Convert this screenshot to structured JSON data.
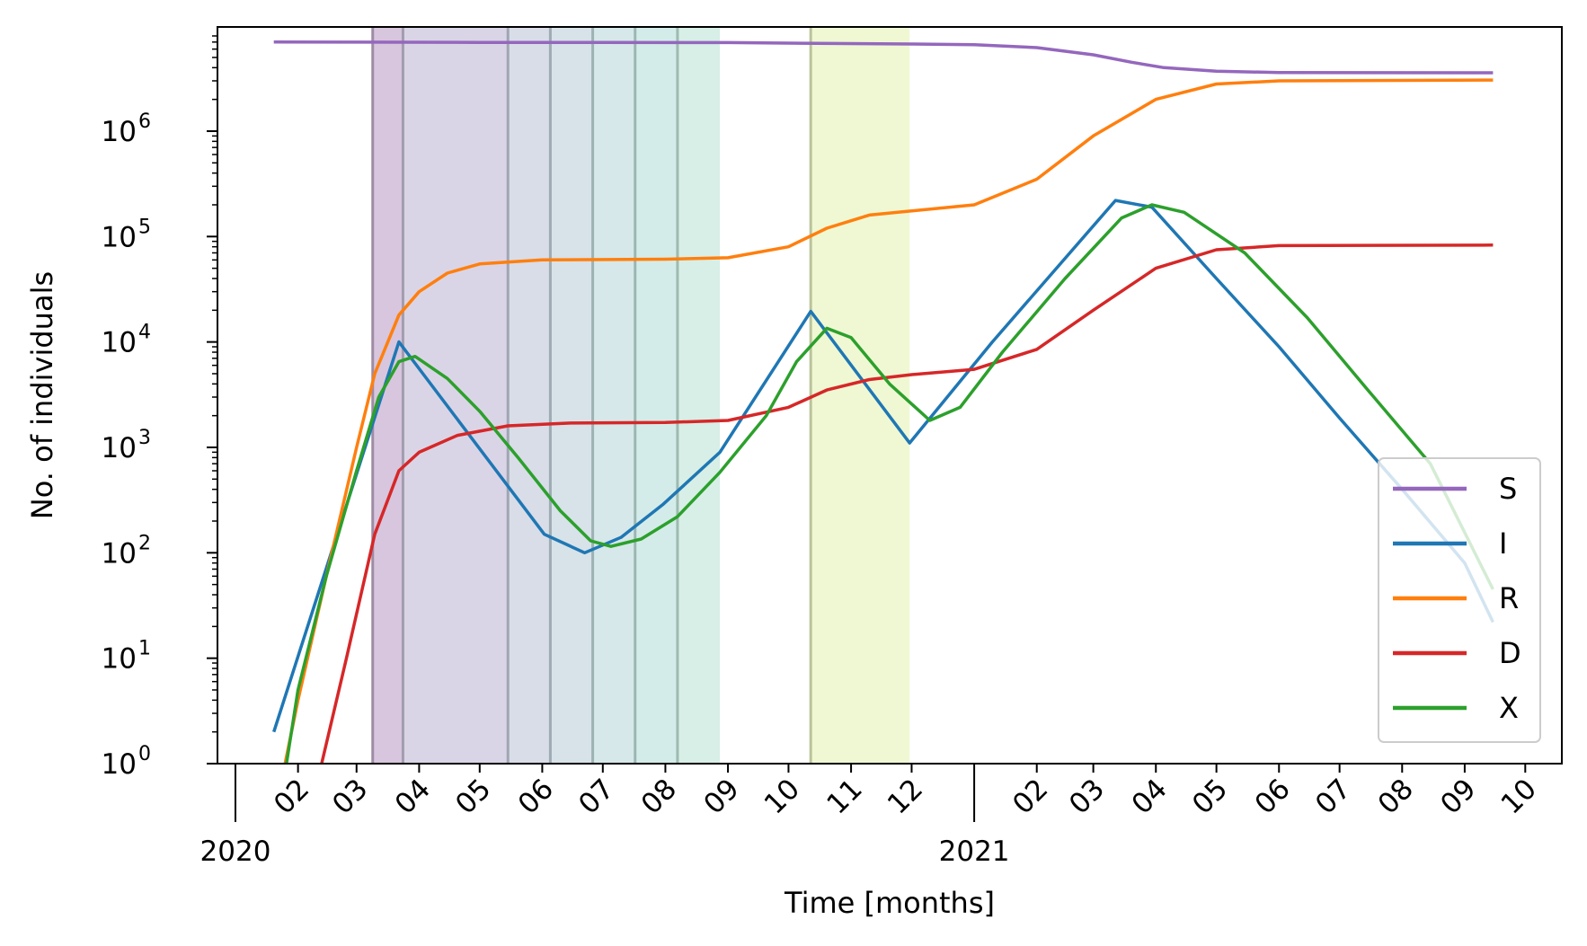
{
  "chart_data": {
    "type": "line",
    "xlabel": "Time [months]",
    "ylabel": "No. of individuals",
    "y_scale": "log",
    "ylim": [
      1,
      8000000
    ],
    "xlim": [
      "2020-01-01",
      "2021-10-12"
    ],
    "grid": false,
    "legend_position": "lower-right",
    "y_ticks": [
      {
        "value": 1,
        "base": "10",
        "exp": "0"
      },
      {
        "value": 10,
        "base": "10",
        "exp": "1"
      },
      {
        "value": 100,
        "base": "10",
        "exp": "2"
      },
      {
        "value": 1000,
        "base": "10",
        "exp": "3"
      },
      {
        "value": 10000,
        "base": "10",
        "exp": "4"
      },
      {
        "value": 100000,
        "base": "10",
        "exp": "5"
      },
      {
        "value": 1000000,
        "base": "10",
        "exp": "6"
      }
    ],
    "x_month_ticks": [
      {
        "date": "2020-02-01",
        "label": "02"
      },
      {
        "date": "2020-03-01",
        "label": "03"
      },
      {
        "date": "2020-04-01",
        "label": "04"
      },
      {
        "date": "2020-05-01",
        "label": "05"
      },
      {
        "date": "2020-06-01",
        "label": "06"
      },
      {
        "date": "2020-07-01",
        "label": "07"
      },
      {
        "date": "2020-08-01",
        "label": "08"
      },
      {
        "date": "2020-09-01",
        "label": "09"
      },
      {
        "date": "2020-10-01",
        "label": "10"
      },
      {
        "date": "2020-11-01",
        "label": "11"
      },
      {
        "date": "2020-12-01",
        "label": "12"
      },
      {
        "date": "2021-02-01",
        "label": "02"
      },
      {
        "date": "2021-03-01",
        "label": "03"
      },
      {
        "date": "2021-04-01",
        "label": "04"
      },
      {
        "date": "2021-05-01",
        "label": "05"
      },
      {
        "date": "2021-06-01",
        "label": "06"
      },
      {
        "date": "2021-07-01",
        "label": "07"
      },
      {
        "date": "2021-08-01",
        "label": "08"
      },
      {
        "date": "2021-09-01",
        "label": "09"
      },
      {
        "date": "2021-10-01",
        "label": "10"
      }
    ],
    "x_year_ticks": [
      {
        "date": "2020-01-01",
        "label": "2020"
      },
      {
        "date": "2021-01-01",
        "label": "2021"
      }
    ],
    "shaded_periods": [
      {
        "start": "2020-03-09",
        "end": "2020-03-24",
        "color": "#c6aece"
      },
      {
        "start": "2020-03-24",
        "end": "2020-05-15",
        "color": "#cbc3db"
      },
      {
        "start": "2020-05-15",
        "end": "2020-06-05",
        "color": "#c7cede"
      },
      {
        "start": "2020-06-05",
        "end": "2020-06-26",
        "color": "#c6d6e0"
      },
      {
        "start": "2020-06-26",
        "end": "2020-07-17",
        "color": "#c4dee0"
      },
      {
        "start": "2020-07-17",
        "end": "2020-08-07",
        "color": "#c2e4e0"
      },
      {
        "start": "2020-08-07",
        "end": "2020-08-28",
        "color": "#c6e8dc"
      },
      {
        "start": "2020-10-12",
        "end": "2020-11-30",
        "color": "#e8f5c0"
      }
    ],
    "series": [
      {
        "name": "S",
        "color": "#9467bd",
        "points": [
          [
            "2020-01-20",
            7000000
          ],
          [
            "2020-03-01",
            6990000
          ],
          [
            "2020-05-01",
            6940000
          ],
          [
            "2020-07-01",
            6930000
          ],
          [
            "2020-09-01",
            6920000
          ],
          [
            "2020-10-15",
            6800000
          ],
          [
            "2020-12-01",
            6700000
          ],
          [
            "2021-01-01",
            6600000
          ],
          [
            "2021-02-01",
            6200000
          ],
          [
            "2021-03-01",
            5300000
          ],
          [
            "2021-03-20",
            4500000
          ],
          [
            "2021-04-05",
            4000000
          ],
          [
            "2021-05-01",
            3700000
          ],
          [
            "2021-06-01",
            3600000
          ],
          [
            "2021-09-15",
            3580000
          ]
        ]
      },
      {
        "name": "I",
        "color": "#1f77b4",
        "points": [
          [
            "2020-01-20",
            2
          ],
          [
            "2020-03-22",
            10000
          ],
          [
            "2020-06-02",
            150
          ],
          [
            "2020-06-22",
            100
          ],
          [
            "2020-07-10",
            140
          ],
          [
            "2020-07-31",
            290
          ],
          [
            "2020-08-28",
            900
          ],
          [
            "2020-10-12",
            19500
          ],
          [
            "2020-11-30",
            1100
          ],
          [
            "2021-01-10",
            10000
          ],
          [
            "2021-03-12",
            220000
          ],
          [
            "2021-03-30",
            190000
          ],
          [
            "2021-05-01",
            40000
          ],
          [
            "2021-06-01",
            9000
          ],
          [
            "2021-07-01",
            1900
          ],
          [
            "2021-08-01",
            400
          ],
          [
            "2021-09-01",
            80
          ],
          [
            "2021-09-15",
            22
          ]
        ]
      },
      {
        "name": "R",
        "color": "#ff7f0e",
        "points": [
          [
            "2020-01-20",
            0.3
          ],
          [
            "2020-02-01",
            4
          ],
          [
            "2020-02-15",
            60
          ],
          [
            "2020-03-01",
            1000
          ],
          [
            "2020-03-10",
            5000
          ],
          [
            "2020-03-22",
            18000
          ],
          [
            "2020-04-01",
            30000
          ],
          [
            "2020-04-15",
            45000
          ],
          [
            "2020-05-01",
            55000
          ],
          [
            "2020-06-01",
            60000
          ],
          [
            "2020-08-01",
            61000
          ],
          [
            "2020-09-01",
            63000
          ],
          [
            "2020-10-01",
            80000
          ],
          [
            "2020-10-20",
            120000
          ],
          [
            "2020-11-10",
            160000
          ],
          [
            "2020-12-01",
            175000
          ],
          [
            "2021-01-01",
            200000
          ],
          [
            "2021-02-01",
            350000
          ],
          [
            "2021-03-01",
            900000
          ],
          [
            "2021-04-01",
            2000000
          ],
          [
            "2021-05-01",
            2800000
          ],
          [
            "2021-06-01",
            3000000
          ],
          [
            "2021-09-15",
            3050000
          ]
        ]
      },
      {
        "name": "D",
        "color": "#d62728",
        "points": [
          [
            "2020-02-10",
            0.6
          ],
          [
            "2020-02-25",
            10
          ],
          [
            "2020-03-10",
            150
          ],
          [
            "2020-03-22",
            600
          ],
          [
            "2020-04-01",
            900
          ],
          [
            "2020-04-20",
            1300
          ],
          [
            "2020-05-15",
            1600
          ],
          [
            "2020-06-15",
            1700
          ],
          [
            "2020-08-01",
            1720
          ],
          [
            "2020-09-01",
            1800
          ],
          [
            "2020-10-01",
            2400
          ],
          [
            "2020-10-20",
            3500
          ],
          [
            "2020-11-10",
            4400
          ],
          [
            "2020-12-01",
            4900
          ],
          [
            "2021-01-01",
            5500
          ],
          [
            "2021-02-01",
            8500
          ],
          [
            "2021-03-01",
            20000
          ],
          [
            "2021-04-01",
            50000
          ],
          [
            "2021-05-01",
            75000
          ],
          [
            "2021-06-01",
            82000
          ],
          [
            "2021-09-15",
            83000
          ]
        ]
      },
      {
        "name": "X",
        "color": "#2ca02c",
        "points": [
          [
            "2020-01-22",
            0.3
          ],
          [
            "2020-02-01",
            5
          ],
          [
            "2020-02-15",
            60
          ],
          [
            "2020-03-01",
            600
          ],
          [
            "2020-03-12",
            3000
          ],
          [
            "2020-03-22",
            6500
          ],
          [
            "2020-03-30",
            7300
          ],
          [
            "2020-04-15",
            4500
          ],
          [
            "2020-05-01",
            2200
          ],
          [
            "2020-05-20",
            800
          ],
          [
            "2020-06-10",
            250
          ],
          [
            "2020-06-25",
            130
          ],
          [
            "2020-07-05",
            115
          ],
          [
            "2020-07-20",
            135
          ],
          [
            "2020-08-07",
            220
          ],
          [
            "2020-08-28",
            580
          ],
          [
            "2020-09-20",
            2000
          ],
          [
            "2020-10-05",
            6500
          ],
          [
            "2020-10-20",
            13500
          ],
          [
            "2020-11-01",
            11000
          ],
          [
            "2020-11-20",
            4000
          ],
          [
            "2020-12-10",
            1800
          ],
          [
            "2020-12-25",
            2400
          ],
          [
            "2021-01-15",
            8000
          ],
          [
            "2021-02-15",
            40000
          ],
          [
            "2021-03-15",
            150000
          ],
          [
            "2021-03-30",
            200000
          ],
          [
            "2021-04-15",
            170000
          ],
          [
            "2021-05-15",
            70000
          ],
          [
            "2021-06-15",
            17000
          ],
          [
            "2021-07-15",
            3500
          ],
          [
            "2021-08-15",
            700
          ],
          [
            "2021-09-15",
            45
          ]
        ]
      }
    ]
  }
}
